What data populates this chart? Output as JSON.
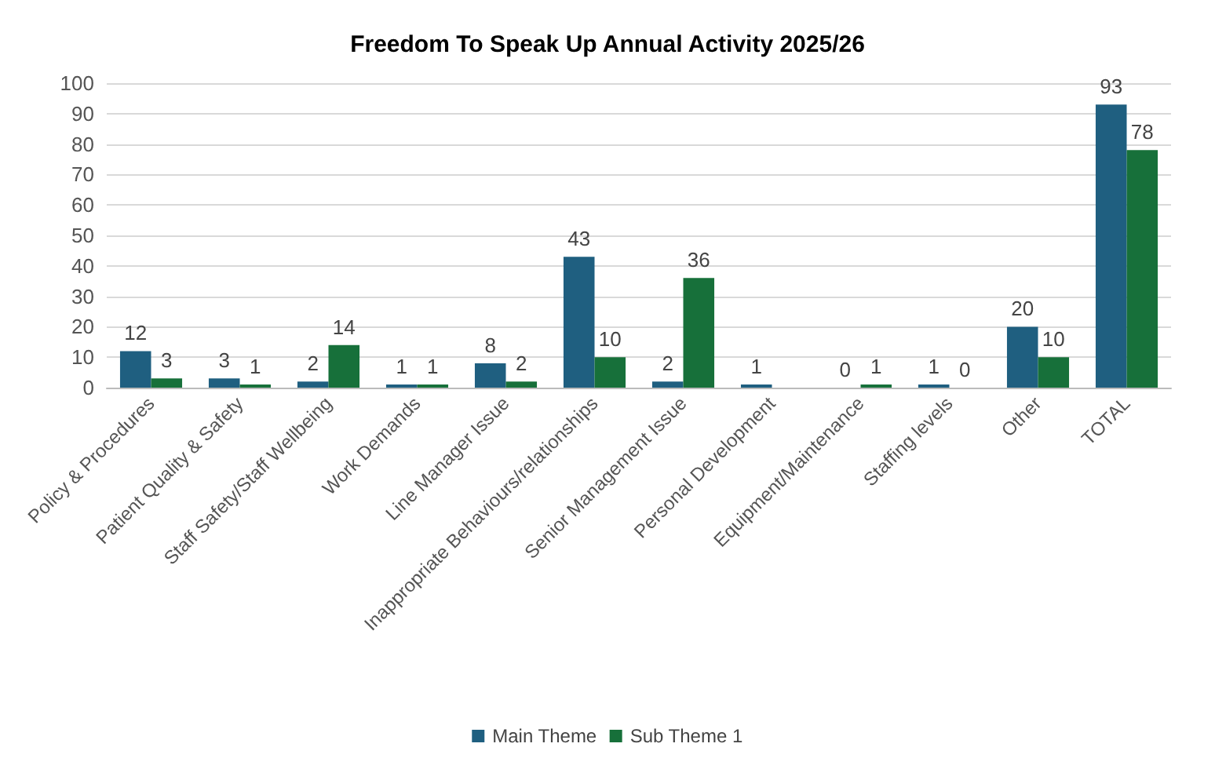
{
  "chart_data": {
    "type": "bar",
    "title": "Freedom To Speak Up Annual Activity 2025/26",
    "categories": [
      "Policy & Procedures",
      "Patient Quality & Safety",
      "Staff Safety/Staff Wellbeing",
      "Work Demands",
      "Line Manager Issue",
      "Inappropriate Behaviours/relationships",
      "Senior Management Issue",
      "Personal Development",
      "Equipment/Maintenance",
      "Staffing levels",
      "Other",
      "TOTAL"
    ],
    "series": [
      {
        "name": "Main Theme",
        "color": "#1f5f80",
        "values": [
          12,
          3,
          2,
          1,
          8,
          43,
          2,
          1,
          0,
          1,
          20,
          93
        ]
      },
      {
        "name": "Sub Theme 1",
        "color": "#17703a",
        "values": [
          3,
          1,
          14,
          1,
          2,
          10,
          36,
          null,
          1,
          0,
          10,
          78
        ]
      }
    ],
    "ylim": [
      0,
      100
    ],
    "yticks": [
      0,
      10,
      20,
      30,
      40,
      50,
      60,
      70,
      80,
      90,
      100
    ],
    "grid": "y",
    "legend": "bottom",
    "data_labels": true
  }
}
